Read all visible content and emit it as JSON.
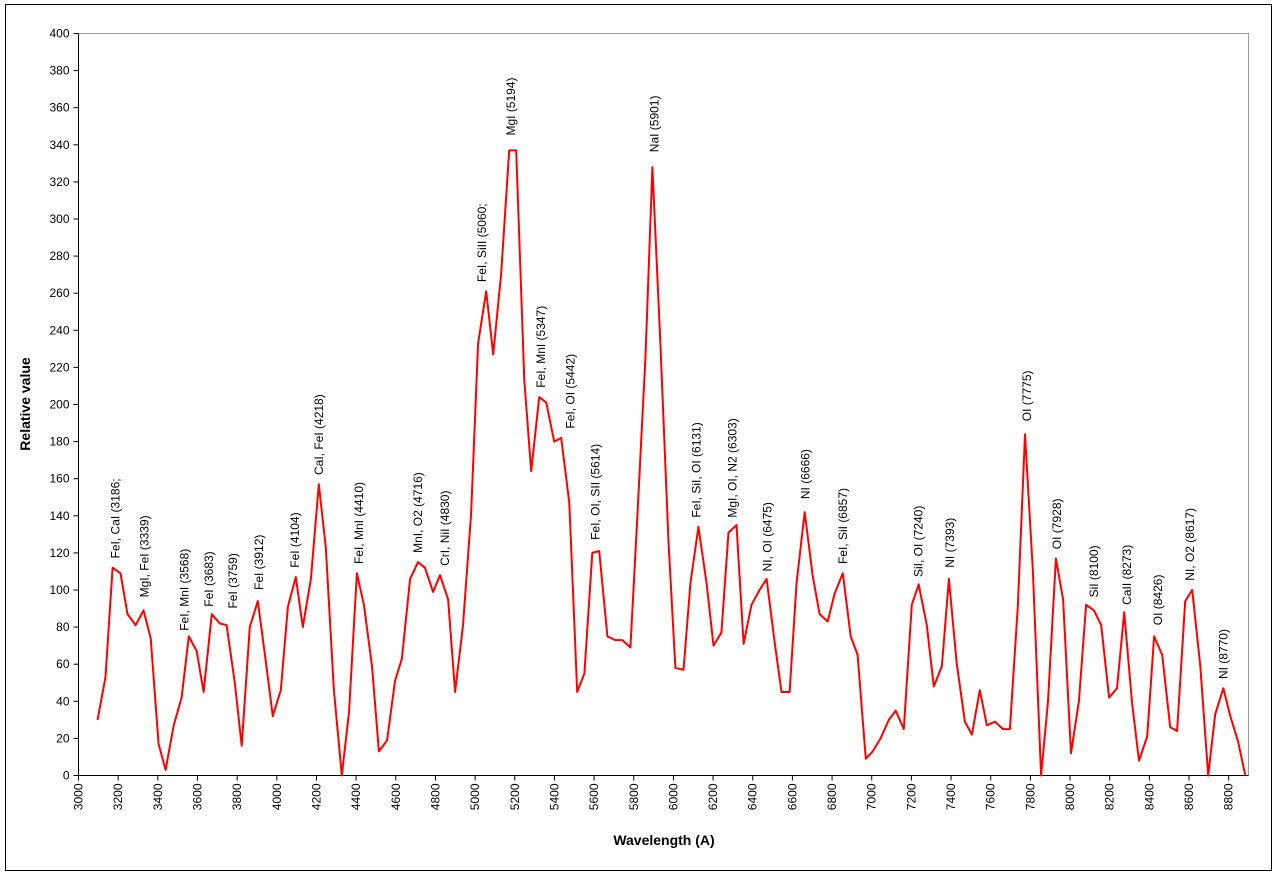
{
  "chart_data": {
    "type": "line",
    "x_label": "Wavelength (A)",
    "y_label": "Relative value",
    "xlim": [
      3000,
      8900
    ],
    "ylim": [
      0,
      400
    ],
    "xticks": [
      3000,
      3200,
      3400,
      3600,
      3800,
      4000,
      4200,
      4400,
      4600,
      4800,
      5000,
      5200,
      5400,
      5600,
      5800,
      6000,
      6200,
      6400,
      6600,
      6800,
      7000,
      7200,
      7400,
      7600,
      7800,
      8000,
      8200,
      8400,
      8600,
      8800
    ],
    "yticks": [
      0,
      20,
      40,
      60,
      80,
      100,
      120,
      140,
      160,
      180,
      200,
      220,
      240,
      260,
      280,
      300,
      320,
      340,
      360,
      380,
      400
    ],
    "grid": false,
    "x": [
      3096,
      3136,
      3172,
      3212,
      3247,
      3288,
      3328,
      3364,
      3404,
      3439,
      3480,
      3520,
      3556,
      3596,
      3631,
      3672,
      3712,
      3747,
      3788,
      3823,
      3864,
      3904,
      3939,
      3980,
      4020,
      4056,
      4096,
      4131,
      4172,
      4212,
      4247,
      4288,
      4328,
      4364,
      4404,
      4439,
      4480,
      4515,
      4556,
      4596,
      4631,
      4672,
      4712,
      4747,
      4788,
      4823,
      4864,
      4899,
      4939,
      4980,
      5015,
      5056,
      5091,
      5131,
      5172,
      5207,
      5248,
      5283,
      5323,
      5359,
      5399,
      5434,
      5475,
      5515,
      5551,
      5591,
      5626,
      5667,
      5707,
      5742,
      5783,
      5818,
      5859,
      5894,
      5934,
      5975,
      6010,
      6051,
      6086,
      6126,
      6167,
      6202,
      6242,
      6278,
      6318,
      6354,
      6394,
      6434,
      6470,
      6510,
      6545,
      6586,
      6621,
      6662,
      6702,
      6737,
      6778,
      6813,
      6854,
      6894,
      6929,
      6970,
      7005,
      7045,
      7086,
      7121,
      7162,
      7202,
      7237,
      7278,
      7313,
      7354,
      7389,
      7429,
      7470,
      7505,
      7545,
      7581,
      7621,
      7662,
      7697,
      7737,
      7773,
      7813,
      7854,
      7889,
      7929,
      7965,
      8005,
      8045,
      8081,
      8121,
      8157,
      8197,
      8237,
      8273,
      8313,
      8348,
      8389,
      8424,
      8465,
      8505,
      8540,
      8581,
      8616,
      8657,
      8697,
      8732,
      8773,
      8808,
      8848,
      8884
    ],
    "series": [
      {
        "color": "#ff0000",
        "values": [
          30,
          53,
          112,
          109,
          87,
          81,
          89,
          74,
          17,
          3,
          27,
          42,
          75,
          67,
          45,
          87,
          82,
          81,
          50,
          16,
          80,
          94,
          66,
          32,
          46,
          91,
          107,
          80,
          106,
          157,
          123,
          46,
          0,
          34,
          109,
          92,
          59,
          13,
          19,
          51,
          63,
          106,
          115,
          112,
          99,
          108,
          95,
          45,
          81,
          141,
          233,
          261,
          227,
          270,
          337,
          337,
          213,
          164,
          204,
          201,
          180,
          182,
          147,
          45,
          55,
          120,
          121,
          75,
          73,
          73,
          69,
          139,
          226,
          328,
          234,
          126,
          58,
          57,
          104,
          134,
          104,
          70,
          77,
          131,
          135,
          71,
          92,
          100,
          106,
          72,
          45,
          45,
          104,
          142,
          108,
          87,
          83,
          98,
          109,
          75,
          65,
          9,
          13,
          20,
          30,
          35,
          25,
          92,
          103,
          81,
          48,
          59,
          106,
          60,
          29,
          22,
          46,
          27,
          29,
          25,
          25,
          92,
          184,
          110,
          0,
          40,
          117,
          95,
          12,
          40,
          92,
          89,
          81,
          42,
          47,
          88,
          39,
          8,
          21,
          75,
          65,
          26,
          24,
          94,
          100,
          59,
          0,
          33,
          47,
          32,
          18,
          0
        ]
      }
    ],
    "annotations": [
      {
        "text": "FeI, CaI (3186;",
        "x": 3187,
        "y": 117
      },
      {
        "text": "MgI, FeI (3339)",
        "x": 3333,
        "y": 96
      },
      {
        "text": "FeI, MnI (3568)",
        "x": 3535,
        "y": 78
      },
      {
        "text": "FeI (3683)",
        "x": 3657,
        "y": 91
      },
      {
        "text": "FeI (3759)",
        "x": 3778,
        "y": 90
      },
      {
        "text": "FeI (3912)",
        "x": 3909,
        "y": 100
      },
      {
        "text": "FeI (4104)",
        "x": 4091,
        "y": 112
      },
      {
        "text": "CaI, FeI (4218)",
        "x": 4212,
        "y": 162
      },
      {
        "text": "FeI, MnI (4410)",
        "x": 4414,
        "y": 114
      },
      {
        "text": "MnI, O2 (4716)",
        "x": 4712,
        "y": 120
      },
      {
        "text": "CrI, NiI (4830)",
        "x": 4848,
        "y": 113
      },
      {
        "text": "FeI, SiII (5060;",
        "x": 5035,
        "y": 266
      },
      {
        "text": "MgI (5194)",
        "x": 5182,
        "y": 345
      },
      {
        "text": "FeI, MnI (5347)",
        "x": 5333,
        "y": 209
      },
      {
        "text": "FeI, OI (5442)",
        "x": 5480,
        "y": 187
      },
      {
        "text": "FeI, OI, SII (5614)",
        "x": 5606,
        "y": 127
      },
      {
        "text": "NaI (5901)",
        "x": 5904,
        "y": 336
      },
      {
        "text": "FeI, SiI, OI (6131)",
        "x": 6116,
        "y": 139
      },
      {
        "text": "MgI, OI, N2 (6303)",
        "x": 6298,
        "y": 139
      },
      {
        "text": "NI, OI (6475)",
        "x": 6475,
        "y": 110
      },
      {
        "text": "NI (6666)",
        "x": 6667,
        "y": 149
      },
      {
        "text": "FeI, SiI (6857)",
        "x": 6854,
        "y": 114
      },
      {
        "text": "SiI, OI (7240)",
        "x": 7237,
        "y": 107
      },
      {
        "text": "NI (7393)",
        "x": 7394,
        "y": 112
      },
      {
        "text": "OI (7775)",
        "x": 7783,
        "y": 191
      },
      {
        "text": "OI (7928)",
        "x": 7934,
        "y": 122
      },
      {
        "text": "SiI (8100)",
        "x": 8121,
        "y": 96
      },
      {
        "text": "CaII (8273)",
        "x": 8288,
        "y": 92
      },
      {
        "text": "OI (8426)",
        "x": 8444,
        "y": 81
      },
      {
        "text": "NI, O2 (8617)",
        "x": 8606,
        "y": 105
      },
      {
        "text": "NI (8770)",
        "x": 8773,
        "y": 52
      }
    ]
  }
}
